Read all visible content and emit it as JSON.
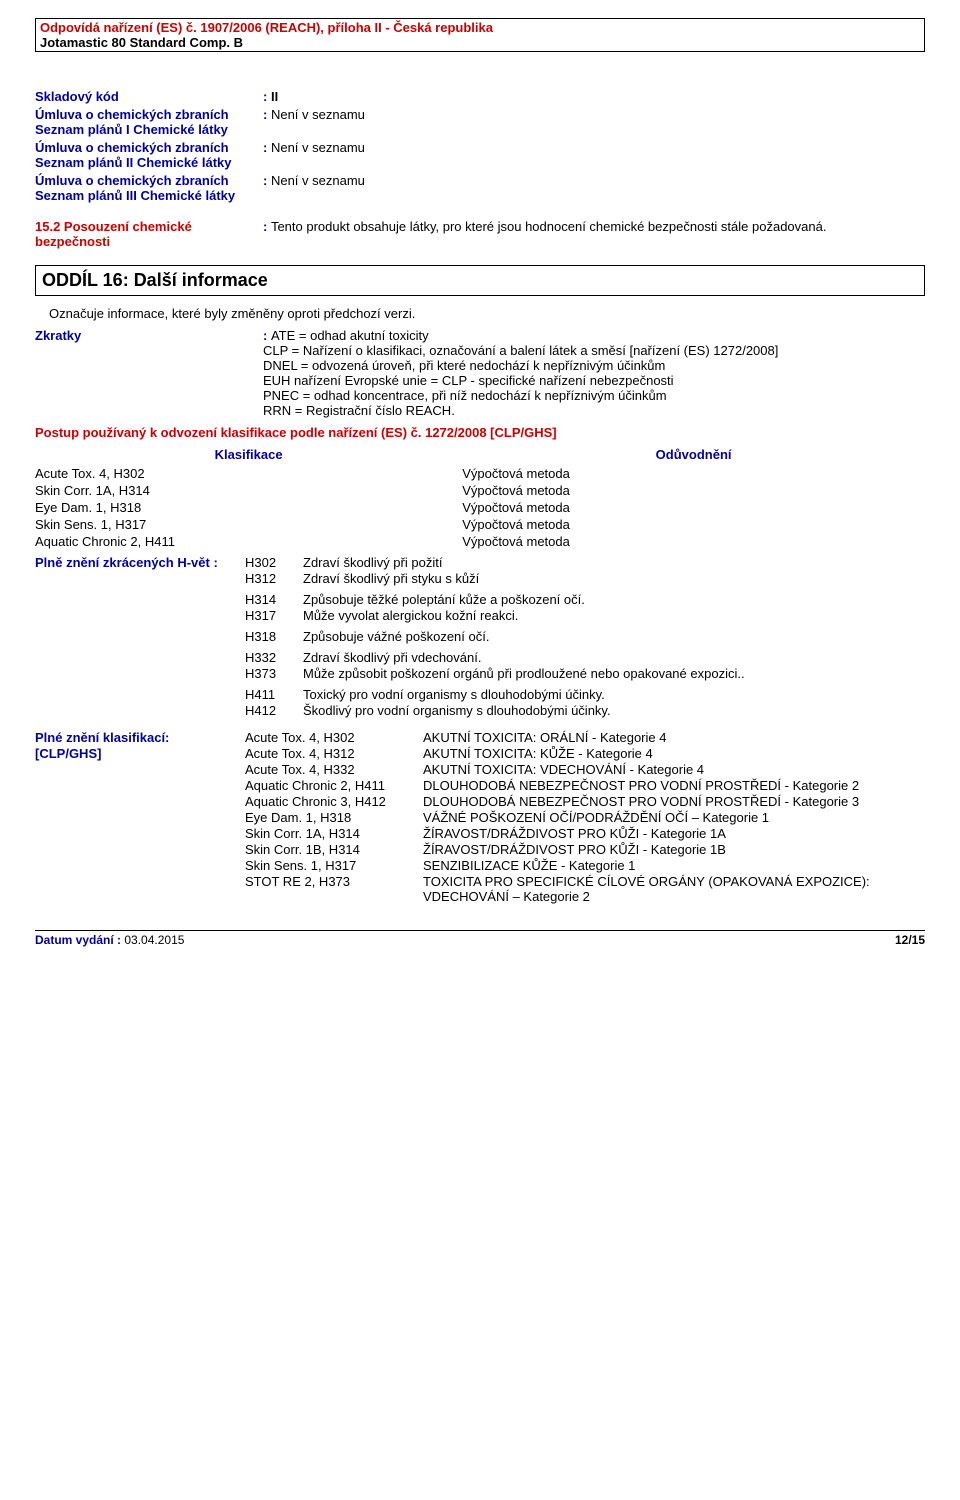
{
  "header": {
    "regulation": "Odpovídá nařízení (ES) č. 1907/2006 (REACH), příloha II - Česká republika",
    "product": "Jotamastic 80 Standard Comp. B"
  },
  "fields": {
    "skladovy_kod_label": "Skladový kód",
    "skladovy_kod_value": "II",
    "umluva1_label": "Úmluva o chemických zbraních Seznam plánů I Chemické látky",
    "umluva1_value": "Není v seznamu",
    "umluva2_label": "Úmluva o chemických zbraních Seznam plánů II Chemické látky",
    "umluva2_value": "Není v seznamu",
    "umluva3_label": "Úmluva o chemických zbraních Seznam plánů III Chemické látky",
    "umluva3_value": "Není v seznamu",
    "posouzeni_label": "15.2 Posouzení chemické bezpečnosti",
    "posouzeni_value": "Tento produkt obsahuje látky, pro které jsou hodnocení chemické bezpečnosti stále požadovaná."
  },
  "section16_title": "ODDÍL 16: Další informace",
  "oznacuje": "Označuje informace, které byly změněny oproti předchozí verzi.",
  "zkratky": {
    "label": "Zkratky",
    "ate": "ATE = odhad akutní toxicity",
    "clp": "CLP = Nařízení o klasifikaci, označování a balení látek a směsí [nařízení (ES) 1272/2008]",
    "dnel": "DNEL = odvozená úroveň, při které nedochází k nepříznivým účinkům",
    "euh": "EUH nařízení Evropské unie = CLP - specifické nařízení nebezpečnosti",
    "pnec": "PNEC = odhad koncentrace, při níž nedochází k nepříznivým účinkům",
    "rrn": "RRN = Registrační číslo REACH."
  },
  "postup": "Postup používaný k odvození klasifikace podle nařízení (ES) č. 1272/2008 [CLP/GHS]",
  "classif_headers": {
    "k": "Klasifikace",
    "o": "Odůvodnění"
  },
  "classif_rows": [
    {
      "k": "Acute Tox. 4, H302",
      "o": "Výpočtová metoda"
    },
    {
      "k": "Skin Corr. 1A, H314",
      "o": "Výpočtová metoda"
    },
    {
      "k": "Eye Dam. 1, H318",
      "o": "Výpočtová metoda"
    },
    {
      "k": "Skin Sens. 1, H317",
      "o": "Výpočtová metoda"
    },
    {
      "k": "Aquatic Chronic 2, H411",
      "o": "Výpočtová metoda"
    }
  ],
  "hvety": {
    "label": "Plně znění zkrácených H-vět :",
    "rows": [
      {
        "c": "H302",
        "t": "Zdraví škodlivý při požití"
      },
      {
        "c": "H312",
        "t": "Zdraví škodlivý při styku s kůží"
      },
      {
        "c": "H314",
        "t": "Způsobuje těžké poleptání kůže a poškození očí."
      },
      {
        "c": "H317",
        "t": "Může vyvolat alergickou kožní reakci."
      },
      {
        "c": "H318",
        "t": "Způsobuje vážné poškození očí."
      },
      {
        "c": "H332",
        "t": "Zdraví škodlivý při vdechování."
      },
      {
        "c": "H373",
        "t": "Může způsobit poškození orgánů při prodloužené nebo opakované expozici.."
      },
      {
        "c": "H411",
        "t": "Toxický pro vodní organismy s dlouhodobými účinky."
      },
      {
        "c": "H412",
        "t": "Škodlivý pro vodní organismy s dlouhodobými účinky."
      }
    ]
  },
  "clp": {
    "label": "Plné znění klasifikací:",
    "label2": "[CLP/GHS]",
    "rows": [
      {
        "c": "Acute Tox. 4, H302",
        "t": "AKUTNÍ TOXICITA: ORÁLNÍ - Kategorie 4"
      },
      {
        "c": "Acute Tox. 4, H312",
        "t": "AKUTNÍ TOXICITA: KŮŽE - Kategorie 4"
      },
      {
        "c": "Acute Tox. 4, H332",
        "t": "AKUTNÍ TOXICITA: VDECHOVÁNÍ - Kategorie 4"
      },
      {
        "c": "Aquatic Chronic 2, H411",
        "t": "DLOUHODOBÁ NEBEZPEČNOST PRO VODNÍ PROSTŘEDÍ - Kategorie 2"
      },
      {
        "c": "Aquatic Chronic 3, H412",
        "t": "DLOUHODOBÁ NEBEZPEČNOST PRO VODNÍ PROSTŘEDÍ - Kategorie 3"
      },
      {
        "c": "Eye Dam. 1, H318",
        "t": "VÁŽNÉ POŠKOZENÍ OČÍ/PODRÁŽDĚNÍ OČÍ – Kategorie 1"
      },
      {
        "c": "Skin Corr. 1A, H314",
        "t": "ŽÍRAVOST/DRÁŽDIVOST PRO KŮŽI - Kategorie 1A"
      },
      {
        "c": "Skin Corr. 1B, H314",
        "t": "ŽÍRAVOST/DRÁŽDIVOST PRO KŮŽI - Kategorie 1B"
      },
      {
        "c": "Skin Sens. 1, H317",
        "t": "SENZIBILIZACE KŮŽE - Kategorie 1"
      },
      {
        "c": "STOT RE 2, H373",
        "t": "TOXICITA PRO SPECIFICKÉ CÍLOVÉ ORGÁNY (OPAKOVANÁ EXPOZICE): VDECHOVÁNÍ – Kategorie 2"
      }
    ]
  },
  "footer": {
    "date_label": "Datum vydání :",
    "date_value": "03.04.2015",
    "page": "12/15"
  }
}
